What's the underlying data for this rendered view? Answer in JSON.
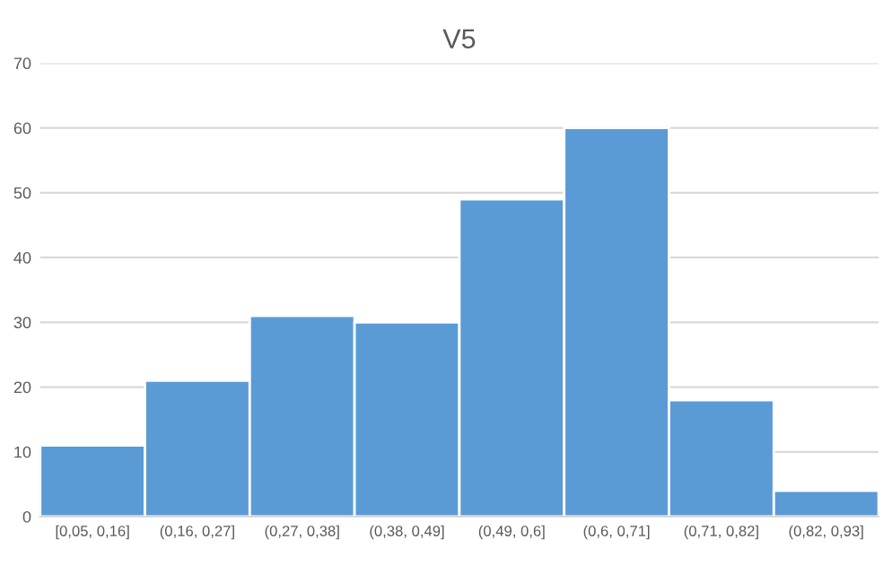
{
  "chart_data": {
    "type": "bar",
    "title": "V5",
    "categories": [
      "[0,05, 0,16]",
      "(0,16, 0,27]",
      "(0,27, 0,38]",
      "(0,38, 0,49]",
      "(0,49, 0,6]",
      "(0,6, 0,71]",
      "(0,71, 0,82]",
      "(0,82, 0,93]"
    ],
    "values": [
      11,
      21,
      31,
      30,
      49,
      60,
      18,
      4
    ],
    "color": "#5b9bd5",
    "ylim": [
      0,
      70
    ],
    "yticks": [
      0,
      10,
      20,
      30,
      40,
      50,
      60,
      70
    ],
    "grid": "y",
    "legend": false
  }
}
